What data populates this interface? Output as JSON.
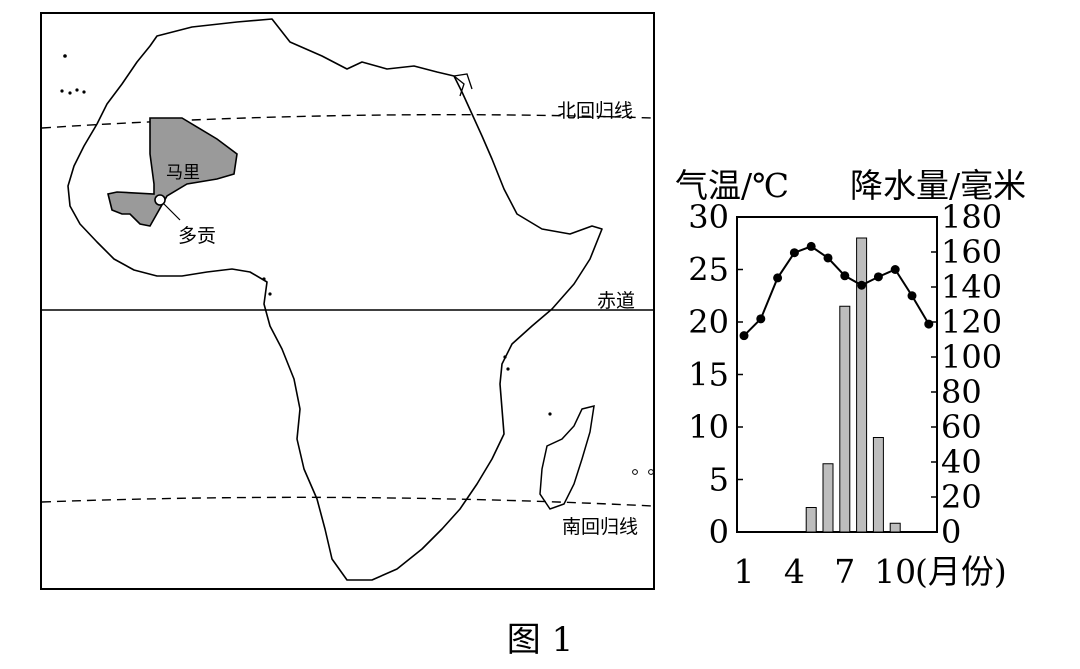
{
  "map": {
    "labels": {
      "tropic_cancer": "北回归线",
      "equator": "赤道",
      "tropic_capricorn": "南回归线",
      "country": "马里",
      "city": "多贡"
    },
    "colors": {
      "outline": "#000000",
      "country_fill": "#9a9a9a"
    }
  },
  "chart_data": {
    "type": "bar+line",
    "left_axis_title": "气温/℃",
    "right_axis_title": "降水量/毫米",
    "x_unit_label": "(月份)",
    "x_ticks": [
      "1",
      "4",
      "7",
      "10"
    ],
    "months": [
      1,
      2,
      3,
      4,
      5,
      6,
      7,
      8,
      9,
      10,
      11,
      12
    ],
    "temperature": {
      "unit": "℃",
      "ylim": [
        0,
        30
      ],
      "ticks": [
        "0",
        "5",
        "10",
        "15",
        "20",
        "25",
        "30"
      ],
      "values": [
        18.7,
        20.3,
        24.2,
        26.6,
        27.2,
        26.1,
        24.4,
        23.5,
        24.3,
        25.0,
        22.5,
        19.8
      ]
    },
    "precipitation": {
      "unit": "毫米",
      "ylim": [
        0,
        180
      ],
      "ticks": [
        "0",
        "20",
        "40",
        "60",
        "80",
        "100",
        "120",
        "140",
        "160",
        "180"
      ],
      "values": [
        0,
        0,
        0,
        0,
        14,
        39,
        129,
        168,
        54,
        5,
        0,
        0
      ]
    },
    "colors": {
      "bar_fill": "#bdbdbd",
      "line": "#000000",
      "marker": "#000000"
    }
  },
  "caption": "图 1"
}
